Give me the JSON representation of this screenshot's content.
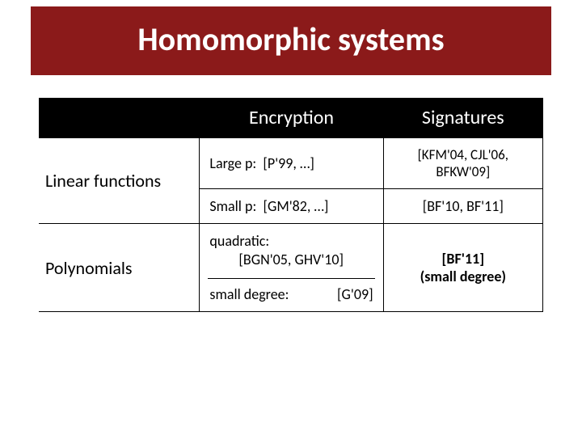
{
  "title": "Homomorphic systems",
  "colors": {
    "title_bg": "#8b1a1a",
    "title_fg": "#ffffff",
    "header_bg": "#000000",
    "header_fg": "#ffffff",
    "border": "#000000",
    "text": "#000000"
  },
  "columns": {
    "encryption": "Encryption",
    "signatures": "Signatures"
  },
  "rows": {
    "linear": {
      "label": "Linear functions",
      "enc_large": {
        "prefix": "Large p:",
        "refs": "[P'99, …]"
      },
      "enc_small": {
        "prefix": "Small p:",
        "refs": "[GM'82, …]"
      },
      "sig_large": "[KFM'04, CJL'06, BFKW'09]",
      "sig_small": "[BF'10, BF'11]"
    },
    "poly": {
      "label": "Polynomials",
      "enc_quadratic_label": "quadratic:",
      "enc_quadratic_refs": "[BGN'05, GHV'10]",
      "enc_smalldeg_label": "small degree:",
      "enc_smalldeg_refs": "[G'09]",
      "sig_line1": "[BF'11]",
      "sig_line2": "(small degree)"
    }
  }
}
